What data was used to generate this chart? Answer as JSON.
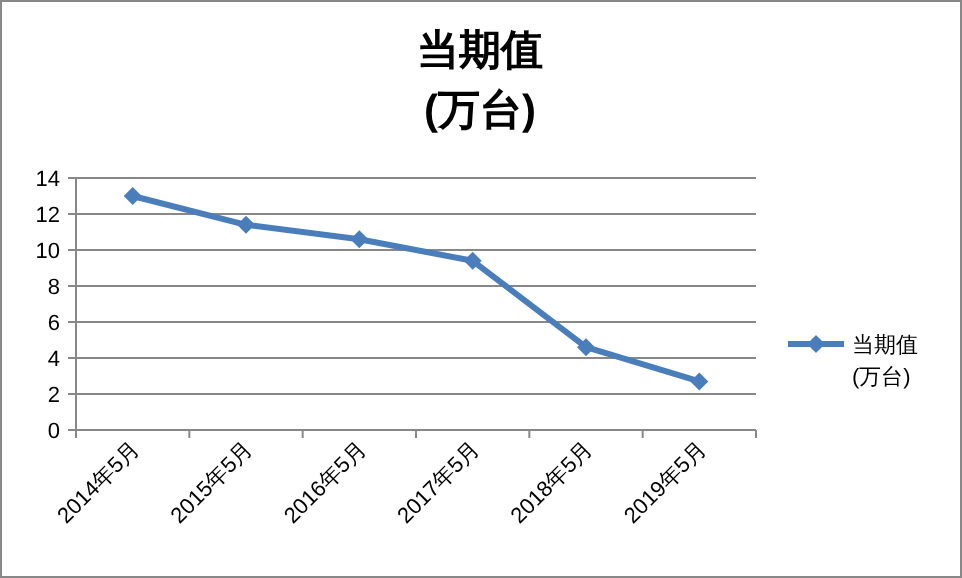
{
  "chart_data": {
    "type": "line",
    "title": "当期值\n(万台)",
    "categories": [
      "2014年5月",
      "2015年5月",
      "2016年5月",
      "2017年5月",
      "2018年5月",
      "2019年5月"
    ],
    "series": [
      {
        "name": "当期值\n(万台)",
        "color": "#4a7ebb",
        "values": [
          13,
          11.4,
          10.6,
          9.4,
          4.6,
          2.7
        ]
      }
    ],
    "ylim": [
      0,
      14
    ],
    "yticks": [
      0,
      2,
      4,
      6,
      8,
      10,
      12,
      14
    ],
    "grid": "y",
    "legend": "right",
    "marker": "diamond",
    "line_style": "solid"
  }
}
